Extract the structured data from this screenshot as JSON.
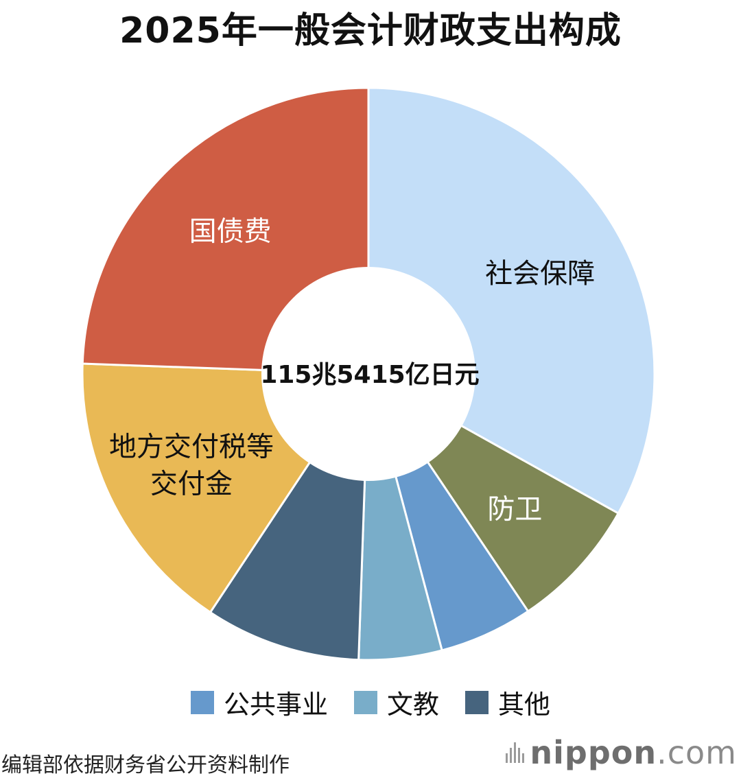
{
  "chart_data": {
    "type": "pie",
    "title": "2025年一般会计财政支出构成",
    "center_label": "115兆5415亿日元",
    "slices": [
      {
        "label": "社会保障",
        "value": 33.2,
        "color": "#c3def8",
        "text_color": "#111111",
        "show_label": true
      },
      {
        "label": "防卫",
        "value": 7.5,
        "color": "#7f8755",
        "text_color": "#ffffff",
        "show_label": true
      },
      {
        "label": "公共事业",
        "value": 5.3,
        "color": "#6699cc",
        "text_color": "#ffffff",
        "show_label": false
      },
      {
        "label": "文教",
        "value": 4.7,
        "color": "#79adc9",
        "text_color": "#ffffff",
        "show_label": false
      },
      {
        "label": "其他",
        "value": 8.8,
        "color": "#46647e",
        "text_color": "#ffffff",
        "show_label": false
      },
      {
        "label": "地方交付税等交付金",
        "label_lines": [
          "地方交付税等",
          "交付金"
        ],
        "value": 16.3,
        "color": "#e9b955",
        "text_color": "#111111",
        "show_label": true
      },
      {
        "label": "国债费",
        "value": 24.5,
        "color": "#cf5d44",
        "text_color": "#ffffff",
        "show_label": true
      }
    ],
    "legend": [
      {
        "label": "公共事业",
        "color": "#6699cc"
      },
      {
        "label": "文教",
        "color": "#79adc9"
      },
      {
        "label": "其他",
        "color": "#46647e"
      }
    ]
  },
  "footer": {
    "source": "编辑部依据财务省公开资料制作",
    "logo_main": "nippon",
    "logo_suffix": ".com"
  }
}
